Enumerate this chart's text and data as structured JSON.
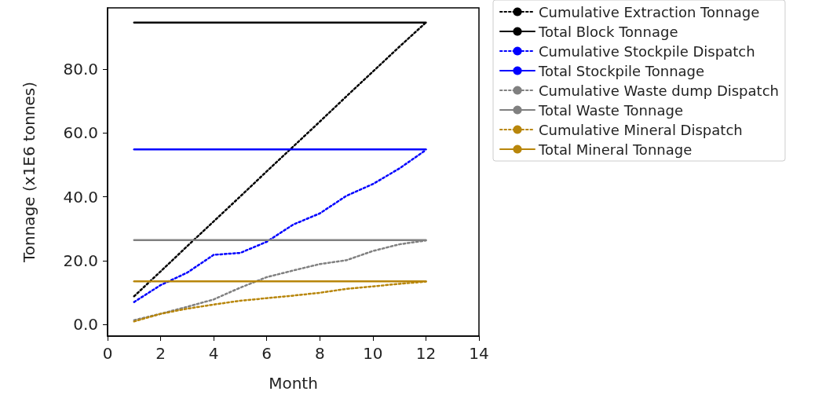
{
  "chart_data": {
    "type": "line",
    "xlabel": "Month",
    "ylabel": "Tonnage (x1E6 tonnes)",
    "xlim": [
      0,
      14
    ],
    "xticks": [
      0,
      2,
      4,
      6,
      8,
      10,
      12,
      14
    ],
    "ylim": [
      -3.7,
      99.3
    ],
    "yticks": [
      {
        "value": 0,
        "label": "0.0"
      },
      {
        "value": 20,
        "label": "20.0"
      },
      {
        "value": 40,
        "label": "40.0"
      },
      {
        "value": 60,
        "label": "60.0"
      },
      {
        "value": 80,
        "label": "80.0"
      }
    ],
    "grid": false,
    "legend": "right",
    "series": [
      {
        "name": "Cumulative Extraction Tonnage",
        "color": "#000000",
        "line_style": "dotted",
        "x": [
          1,
          2,
          3,
          4,
          5,
          6,
          7,
          8,
          9,
          10,
          11,
          12
        ],
        "values": [
          8.8,
          16.6,
          24.5,
          32.3,
          40.1,
          48.0,
          55.8,
          63.6,
          71.5,
          79.3,
          87.1,
          94.7
        ]
      },
      {
        "name": "Total Block Tonnage",
        "color": "#000000",
        "line_style": "solid",
        "x": [
          1,
          12
        ],
        "values": [
          94.7,
          94.7
        ]
      },
      {
        "name": "Cumulative Stockpile Dispatch",
        "color": "#0000ff",
        "line_style": "dotted",
        "x": [
          1,
          2,
          3,
          4,
          5,
          6,
          7,
          8,
          9,
          10,
          11,
          12
        ],
        "values": [
          7.0,
          12.3,
          16.2,
          21.8,
          22.4,
          25.9,
          31.3,
          34.8,
          40.3,
          44.0,
          48.9,
          54.7
        ]
      },
      {
        "name": "Total Stockpile Tonnage",
        "color": "#0000ff",
        "line_style": "solid",
        "x": [
          1,
          12
        ],
        "values": [
          54.9,
          54.9
        ]
      },
      {
        "name": "Cumulative Waste dump Dispatch",
        "color": "#808080",
        "line_style": "dotted",
        "x": [
          1,
          2,
          3,
          4,
          5,
          6,
          7,
          8,
          9,
          10,
          11,
          12
        ],
        "values": [
          1.3,
          3.3,
          5.5,
          7.8,
          11.5,
          14.8,
          16.9,
          18.9,
          20.1,
          23.0,
          25.1,
          26.3
        ]
      },
      {
        "name": "Total Waste Tonnage",
        "color": "#808080",
        "line_style": "solid",
        "x": [
          1,
          12
        ],
        "values": [
          26.4,
          26.4
        ]
      },
      {
        "name": "Cumulative Mineral Dispatch",
        "color": "#b8860b",
        "line_style": "dotted",
        "x": [
          1,
          2,
          3,
          4,
          5,
          6,
          7,
          8,
          9,
          10,
          11,
          12
        ],
        "values": [
          0.9,
          3.3,
          4.9,
          6.2,
          7.4,
          8.2,
          9.0,
          9.9,
          11.1,
          11.9,
          12.7,
          13.4
        ]
      },
      {
        "name": "Total Mineral Tonnage",
        "color": "#b8860b",
        "line_style": "solid",
        "x": [
          1,
          12
        ],
        "values": [
          13.5,
          13.5
        ]
      }
    ]
  }
}
